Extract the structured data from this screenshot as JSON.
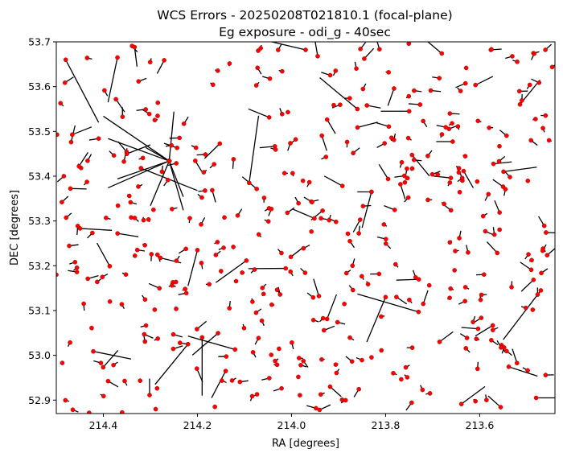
{
  "chart_data": {
    "type": "scatter",
    "title": "WCS Errors - 20250208T021810.1 (focal-plane)",
    "subtitle": "Eg exposure - odi_g - 40sec",
    "xlabel": "RA [degrees]",
    "ylabel": "DEC [degrees]",
    "xlim": [
      214.5,
      213.44
    ],
    "ylim": [
      52.87,
      53.7
    ],
    "x_ticks": [
      {
        "value": 214.4,
        "label": "214.4"
      },
      {
        "value": 214.2,
        "label": "214.2"
      },
      {
        "value": 214.0,
        "label": "214.0"
      },
      {
        "value": 213.8,
        "label": "213.8"
      },
      {
        "value": 213.6,
        "label": "213.6"
      }
    ],
    "y_ticks": [
      {
        "value": 52.9,
        "label": "52.9"
      },
      {
        "value": 53.0,
        "label": "53.0"
      },
      {
        "value": 53.1,
        "label": "53.1"
      },
      {
        "value": 53.2,
        "label": "53.2"
      },
      {
        "value": 53.3,
        "label": "53.3"
      },
      {
        "value": 53.4,
        "label": "53.4"
      },
      {
        "value": 53.5,
        "label": "53.5"
      },
      {
        "value": 53.6,
        "label": "53.6"
      },
      {
        "value": 53.7,
        "label": "53.7"
      }
    ],
    "grid": false,
    "marker_color": "#ff0000",
    "vector_color": "#000000",
    "point_count": 420,
    "notable_vectors": [
      {
        "ra": 214.26,
        "dec": 53.434,
        "dra": 0.14,
        "ddec": 0.1
      },
      {
        "ra": 214.26,
        "dec": 53.434,
        "dra": 0.13,
        "ddec": 0.05
      },
      {
        "ra": 214.26,
        "dec": 53.434,
        "dra": 0.11,
        "ddec": -0.04
      },
      {
        "ra": 214.26,
        "dec": 53.434,
        "dra": 0.13,
        "ddec": -0.06
      },
      {
        "ra": 214.26,
        "dec": 53.434,
        "dra": -0.01,
        "ddec": 0.11
      },
      {
        "ra": 214.26,
        "dec": 53.434,
        "dra": -0.03,
        "ddec": -0.08
      },
      {
        "ra": 214.26,
        "dec": 53.434,
        "dra": -0.03,
        "ddec": -0.11
      },
      {
        "ra": 214.26,
        "dec": 53.434,
        "dra": 0.05,
        "ddec": 0.03
      },
      {
        "ra": 214.26,
        "dec": 53.434,
        "dra": 0.04,
        "ddec": -0.1
      },
      {
        "ra": 213.75,
        "dec": 53.545,
        "dra": 0.06,
        "ddec": 0.0
      },
      {
        "ra": 213.73,
        "dec": 53.097,
        "dra": 0.13,
        "ddec": 0.04
      },
      {
        "ra": 213.83,
        "dec": 53.365,
        "dra": 0.03,
        "ddec": 0.0
      },
      {
        "ra": 213.83,
        "dec": 53.365,
        "dra": 0.02,
        "ddec": -0.08
      },
      {
        "ra": 213.86,
        "dec": 53.55,
        "dra": 0.08,
        "ddec": 0.07
      },
      {
        "ra": 214.5,
        "dec": 53.18,
        "dra": 0.05,
        "ddec": 0.03
      },
      {
        "ra": 214.09,
        "dec": 53.385,
        "dra": -0.02,
        "ddec": 0.15
      },
      {
        "ra": 214.19,
        "dec": 53.04,
        "dra": 0.0,
        "ddec": -0.13
      },
      {
        "ra": 214.22,
        "dec": 53.025,
        "dra": 0.07,
        "ddec": -0.09
      },
      {
        "ra": 214.2,
        "dec": 53.235,
        "dra": 0.02,
        "ddec": -0.08
      },
      {
        "ra": 213.47,
        "dec": 53.145,
        "dra": 0.08,
        "ddec": -0.11
      },
      {
        "ra": 213.48,
        "dec": 52.905,
        "dra": -0.04,
        "ddec": 0.0
      },
      {
        "ra": 214.48,
        "dec": 53.66,
        "dra": -0.07,
        "ddec": -0.14
      },
      {
        "ra": 214.37,
        "dec": 53.665,
        "dra": 0.02,
        "ddec": -0.1
      },
      {
        "ra": 214.35,
        "dec": 53.45,
        "dra": -0.05,
        "ddec": 0.02
      },
      {
        "ra": 214.32,
        "dec": 53.418,
        "dra": -0.12,
        "ddec": -0.05
      },
      {
        "ra": 213.97,
        "dec": 53.682,
        "dra": 0.08,
        "ddec": 0.02
      },
      {
        "ra": 214.12,
        "dec": 53.013,
        "dra": 0.1,
        "ddec": 0.03
      },
      {
        "ra": 214.14,
        "dec": 52.965,
        "dra": 0.03,
        "ddec": -0.06
      },
      {
        "ra": 213.72,
        "dec": 53.115,
        "dra": -0.01,
        "ddec": 0.03
      },
      {
        "ra": 213.8,
        "dec": 53.13,
        "dra": 0.04,
        "ddec": -0.1
      }
    ]
  }
}
